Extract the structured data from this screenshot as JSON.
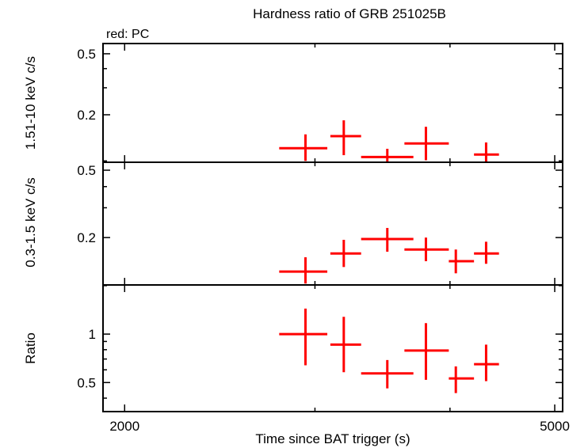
{
  "chart_data": {
    "type": "scatter",
    "title": "Hardness ratio of GRB 251025B",
    "legend": "red: PC",
    "xlabel": "Time since BAT trigger (s)",
    "point_color": "#ff0000",
    "axis_color": "#000000",
    "x_scale": "log",
    "x_range": [
      1910,
      5085
    ],
    "x_ticks_major": [
      2000,
      5000
    ],
    "x_ticks_minor": [
      3000,
      4000
    ],
    "legend_position": "top-left",
    "grid": false,
    "panels": [
      {
        "name": "hard-band",
        "ylabel": "1.51-10 keV c/s",
        "y_scale": "log",
        "y_range": [
          0.098,
          0.583
        ],
        "y_ticks_major": [
          0.5,
          0.2
        ],
        "y_ticks_minor": [
          0.1,
          0.3,
          0.4
        ],
        "points": [
          {
            "t": 2940,
            "t_lo": 2780,
            "t_hi": 3080,
            "v": 0.121,
            "v_lo": 0.1,
            "v_hi": 0.149
          },
          {
            "t": 3190,
            "t_lo": 3100,
            "t_hi": 3310,
            "v": 0.145,
            "v_lo": 0.109,
            "v_hi": 0.184
          },
          {
            "t": 3500,
            "t_lo": 3310,
            "t_hi": 3700,
            "v": 0.106,
            "v_lo": 0.096,
            "v_hi": 0.12
          },
          {
            "t": 3800,
            "t_lo": 3630,
            "t_hi": 3990,
            "v": 0.13,
            "v_lo": 0.101,
            "v_hi": 0.167
          },
          {
            "t": 4320,
            "t_lo": 4210,
            "t_hi": 4440,
            "v": 0.11,
            "v_lo": 0.094,
            "v_hi": 0.132
          }
        ]
      },
      {
        "name": "soft-band",
        "ylabel": "0.3-1.5 keV c/s",
        "y_scale": "log",
        "y_range": [
          0.105,
          0.557
        ],
        "y_ticks_major": [
          0.5,
          0.2
        ],
        "y_ticks_minor": [
          0.3,
          0.4
        ],
        "points": [
          {
            "t": 2940,
            "t_lo": 2780,
            "t_hi": 3080,
            "v": 0.126,
            "v_lo": 0.107,
            "v_hi": 0.153
          },
          {
            "t": 3190,
            "t_lo": 3100,
            "t_hi": 3310,
            "v": 0.161,
            "v_lo": 0.134,
            "v_hi": 0.194
          },
          {
            "t": 3500,
            "t_lo": 3310,
            "t_hi": 3700,
            "v": 0.196,
            "v_lo": 0.165,
            "v_hi": 0.228
          },
          {
            "t": 3800,
            "t_lo": 3630,
            "t_hi": 3990,
            "v": 0.17,
            "v_lo": 0.145,
            "v_hi": 0.2
          },
          {
            "t": 4050,
            "t_lo": 3990,
            "t_hi": 4210,
            "v": 0.145,
            "v_lo": 0.123,
            "v_hi": 0.17
          },
          {
            "t": 4320,
            "t_lo": 4210,
            "t_hi": 4440,
            "v": 0.161,
            "v_lo": 0.14,
            "v_hi": 0.189
          }
        ]
      },
      {
        "name": "ratio",
        "ylabel": "Ratio",
        "y_scale": "log",
        "y_range": [
          0.33,
          2.02
        ],
        "y_ticks_major": [
          1,
          0.5
        ],
        "y_ticks_minor": [
          0.4,
          0.6,
          0.7,
          0.8,
          0.9,
          2
        ],
        "points": [
          {
            "t": 2940,
            "t_lo": 2780,
            "t_hi": 3080,
            "v": 1.0,
            "v_lo": 0.64,
            "v_hi": 1.44
          },
          {
            "t": 3190,
            "t_lo": 3100,
            "t_hi": 3310,
            "v": 0.86,
            "v_lo": 0.58,
            "v_hi": 1.28
          },
          {
            "t": 3500,
            "t_lo": 3310,
            "t_hi": 3700,
            "v": 0.57,
            "v_lo": 0.46,
            "v_hi": 0.69
          },
          {
            "t": 3800,
            "t_lo": 3630,
            "t_hi": 3990,
            "v": 0.79,
            "v_lo": 0.52,
            "v_hi": 1.17
          },
          {
            "t": 4050,
            "t_lo": 3990,
            "t_hi": 4210,
            "v": 0.53,
            "v_lo": 0.43,
            "v_hi": 0.63
          },
          {
            "t": 4320,
            "t_lo": 4210,
            "t_hi": 4440,
            "v": 0.65,
            "v_lo": 0.51,
            "v_hi": 0.86
          }
        ]
      }
    ]
  }
}
